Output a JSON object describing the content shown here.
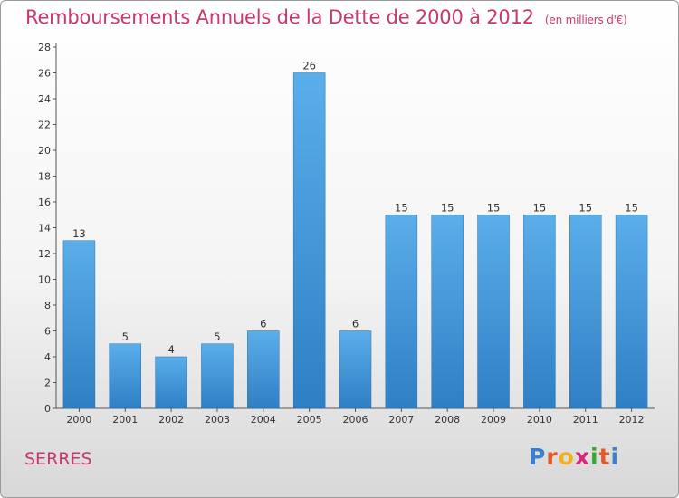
{
  "header": {
    "title": "Remboursements Annuels de la Dette de 2000 à 2012",
    "unit": "(en milliers d'€)"
  },
  "footer": {
    "place": "SERRES",
    "logo_letters": [
      "P",
      "r",
      "o",
      "x",
      "i",
      "t",
      "i"
    ],
    "logo_colors": [
      "#3a7fd0",
      "#e05a2a",
      "#f2b01e",
      "#d6287a",
      "#3aa63a",
      "#e05a2a",
      "#3a7fd0"
    ]
  },
  "chart_data": {
    "type": "bar",
    "title": "Remboursements Annuels de la Dette de 2000 à 2012",
    "xlabel": "",
    "ylabel": "",
    "categories": [
      "2000",
      "2001",
      "2002",
      "2003",
      "2004",
      "2005",
      "2006",
      "2007",
      "2008",
      "2009",
      "2010",
      "2011",
      "2012"
    ],
    "values": [
      13,
      5,
      4,
      5,
      6,
      26,
      6,
      15,
      15,
      15,
      15,
      15,
      15
    ],
    "ylim": [
      0,
      28
    ],
    "yticks": [
      0,
      2,
      4,
      6,
      8,
      10,
      12,
      14,
      16,
      18,
      20,
      22,
      24,
      26,
      28
    ],
    "bar_color": "#4a9fe0",
    "grid": false,
    "data_labels": true
  }
}
